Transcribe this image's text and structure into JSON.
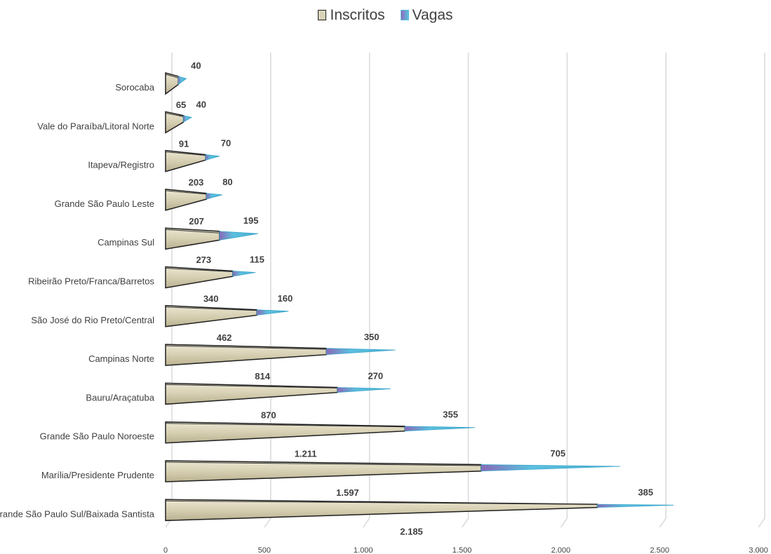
{
  "chart_data": {
    "type": "bar",
    "orientation": "horizontal",
    "stacked": true,
    "categories": [
      "Sorocaba",
      "Vale do Paraíba/Litoral Norte",
      "Itapeva/Registro",
      "Grande São Paulo Leste",
      "Campinas Sul",
      "Ribeirão Preto/Franca/Barretos",
      "São José do Rio Preto/Central",
      "Campinas Norte",
      "Bauru/Araçatuba",
      "Grande São Paulo Noroeste",
      "Marília/Presidente Prudente",
      "Grande São Paulo Sul/Baixada Santista"
    ],
    "series": [
      {
        "name": "Inscritos",
        "color": "#d9d3b8",
        "values": [
          65,
          91,
          203,
          207,
          273,
          340,
          462,
          814,
          870,
          1211,
          1597,
          2185
        ],
        "labels": [
          "65",
          "91",
          "203",
          "207",
          "273",
          "340",
          "462",
          "814",
          "870",
          "1.211",
          "1.597",
          "2.185"
        ]
      },
      {
        "name": "Vagas",
        "color": "#5bc0de",
        "values": [
          40,
          40,
          70,
          80,
          195,
          115,
          160,
          350,
          270,
          355,
          705,
          385
        ],
        "labels": [
          "40",
          "40",
          "70",
          "80",
          "195",
          "115",
          "160",
          "350",
          "270",
          "355",
          "705",
          "385"
        ]
      }
    ],
    "x_ticks": [
      "0",
      "500",
      "1.000",
      "1.500",
      "2.000",
      "2.500",
      "3.000"
    ],
    "xlim": [
      0,
      3000
    ],
    "grid": true,
    "legend_position": "top"
  }
}
